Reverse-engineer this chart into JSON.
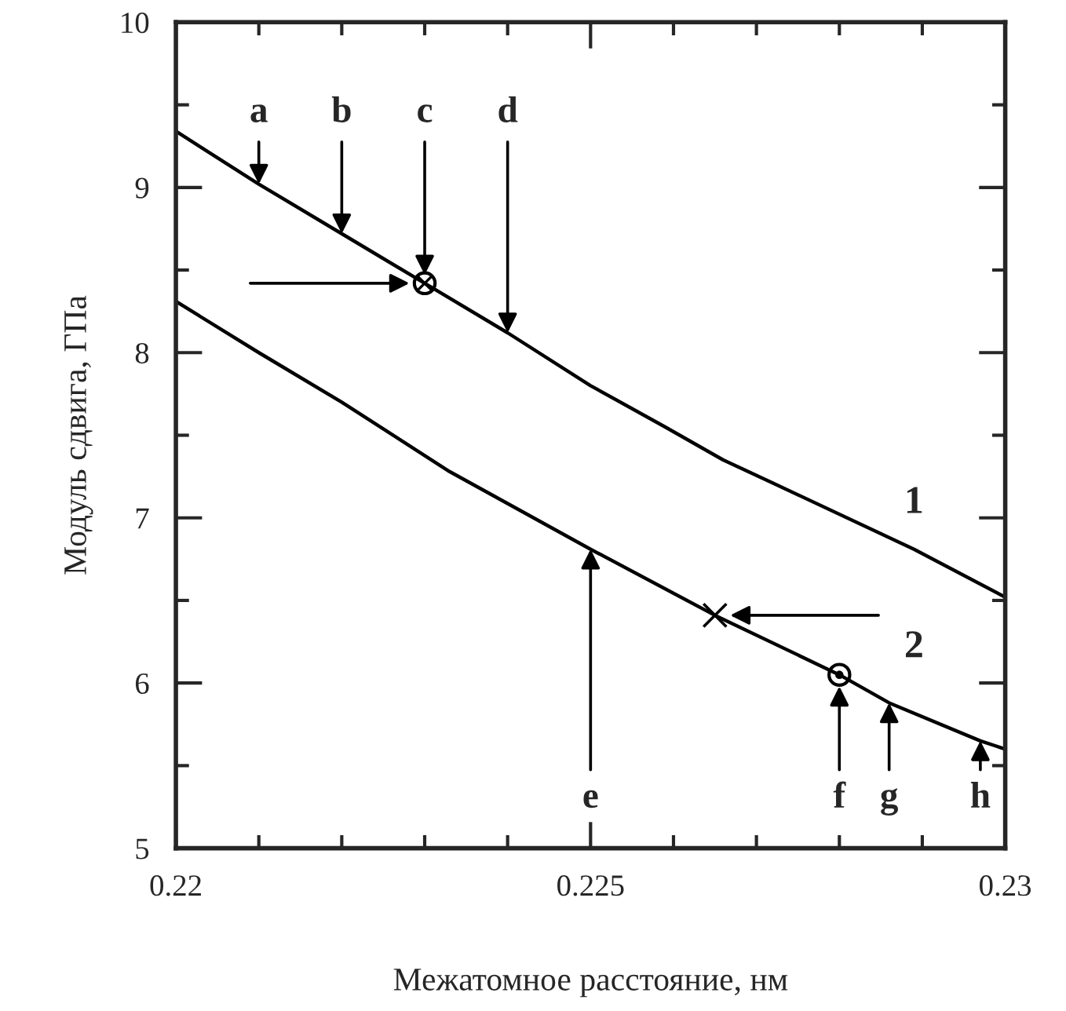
{
  "chart_data": {
    "type": "line",
    "xlabel": "Межатомное расстояние, нм",
    "ylabel": "Модуль сдвига, ГПа",
    "series": [
      {
        "name": "1",
        "color": "#000000",
        "x": [
          0.22,
          0.221,
          0.222,
          0.223,
          0.224,
          0.225,
          0.2259,
          0.2266,
          0.2272,
          0.2289,
          0.23
        ],
        "values": [
          9.34,
          9.02,
          8.72,
          8.42,
          8.12,
          7.8,
          7.55,
          7.35,
          7.21,
          6.81,
          6.52
        ]
      },
      {
        "name": "2",
        "color": "#000000",
        "x": [
          0.22,
          0.221,
          0.222,
          0.2233,
          0.225,
          0.2265,
          0.228,
          0.2286,
          0.2297,
          0.23
        ],
        "values": [
          8.31,
          8.0,
          7.7,
          7.28,
          6.81,
          6.41,
          6.05,
          5.88,
          5.65,
          5.6
        ]
      },
      {
        "type": "scatter",
        "marker": "circle",
        "color": "#000000",
        "x": [
          0.223
        ],
        "values": [
          8.42
        ]
      },
      {
        "type": "scatter",
        "marker": "cross",
        "color": "#000000",
        "x": [
          0.2265
        ],
        "values": [
          6.41
        ]
      },
      {
        "type": "scatter",
        "marker": "circle",
        "color": "#000000",
        "x": [
          0.228
        ],
        "values": [
          6.05
        ]
      }
    ],
    "annotations": [
      {
        "text": "a",
        "x": 0.221,
        "y": 9.02
      },
      {
        "text": "b",
        "x": 0.222,
        "y": 8.72
      },
      {
        "text": "c",
        "x": 0.223,
        "y": 8.47
      },
      {
        "text": "d",
        "x": 0.224,
        "y": 8.12
      },
      {
        "text": "e",
        "x": 0.225,
        "y": 6.81
      },
      {
        "text": "f",
        "x": 0.228,
        "y": 5.98
      },
      {
        "text": "g",
        "x": 0.2286,
        "y": 5.88
      },
      {
        "text": "h",
        "x": 0.2297,
        "y": 5.65
      }
    ],
    "xlim": [
      0.22,
      0.23
    ],
    "xticks": [
      {
        "value": 0.22,
        "label": "0.22"
      },
      {
        "value": 0.221,
        "label": null
      },
      {
        "value": 0.222,
        "label": null
      },
      {
        "value": 0.223,
        "label": null
      },
      {
        "value": 0.224,
        "label": null
      },
      {
        "value": 0.225,
        "label": "0.225"
      },
      {
        "value": 0.226,
        "label": null
      },
      {
        "value": 0.227,
        "label": null
      },
      {
        "value": 0.228,
        "label": null
      },
      {
        "value": 0.229,
        "label": null
      },
      {
        "value": 0.23,
        "label": "0.23"
      }
    ],
    "ylim": [
      5,
      10
    ],
    "yticks": [
      5,
      {
        "value": 5.5,
        "label": null
      },
      6,
      {
        "value": 6.5,
        "label": null
      },
      7,
      {
        "value": 7.5,
        "label": null
      },
      8,
      {
        "value": 8.5,
        "label": null
      },
      9,
      {
        "value": 9.5,
        "label": null
      },
      10
    ],
    "grid": false,
    "legend": false
  }
}
